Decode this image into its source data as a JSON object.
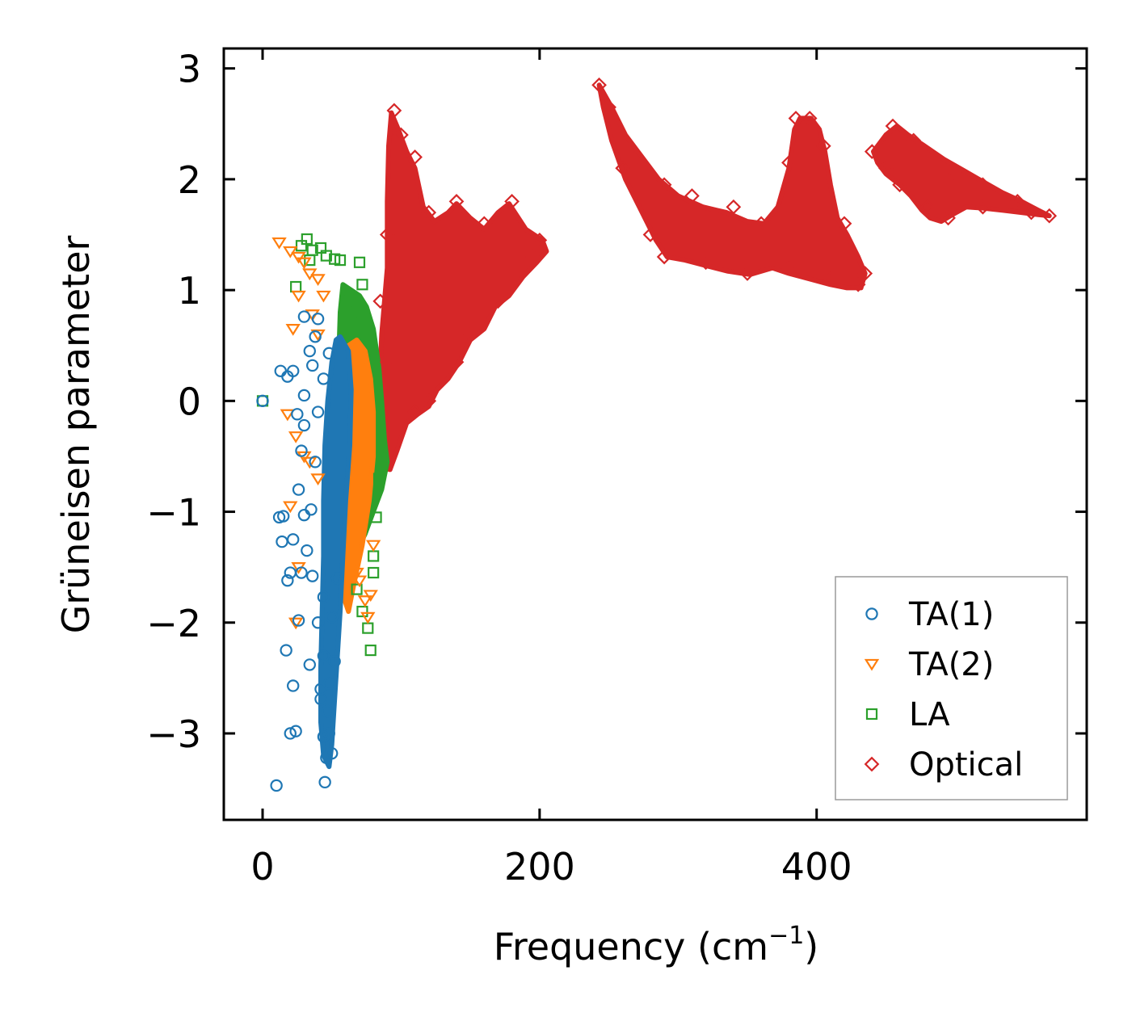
{
  "chart_data": {
    "type": "scatter",
    "title": "",
    "xlabel_main": "Frequency (cm",
    "xlabel_sup": "−1",
    "xlabel_end": ")",
    "ylabel": "Grüneisen parameter",
    "xlim": [
      -28,
      595
    ],
    "ylim": [
      -3.78,
      3.18
    ],
    "xticks": [
      0,
      200,
      400
    ],
    "xtick_labels": [
      "0",
      "200",
      "400"
    ],
    "yticks": [
      -3,
      -2,
      -1,
      0,
      1,
      2,
      3
    ],
    "ytick_labels": [
      "−3",
      "−2",
      "−1",
      "0",
      "1",
      "2",
      "3"
    ],
    "legend_position": "lower-right",
    "series": [
      {
        "name": "TA(1)",
        "marker": "circle",
        "color": "#1f77b4",
        "points": [
          [
            0,
            0
          ],
          [
            10,
            -3.47
          ],
          [
            12,
            -1.05
          ],
          [
            15,
            -1.04
          ],
          [
            17,
            -2.25
          ],
          [
            20,
            -3.0
          ],
          [
            22,
            -2.57
          ],
          [
            24,
            -2.98
          ],
          [
            26,
            -1.98
          ],
          [
            28,
            -1.55
          ],
          [
            30,
            -1.03
          ],
          [
            32,
            -1.35
          ],
          [
            34,
            -2.38
          ],
          [
            36,
            -1.58
          ],
          [
            38,
            -0.55
          ],
          [
            40,
            -0.1
          ],
          [
            42,
            -2.69
          ],
          [
            44,
            -1.77
          ],
          [
            13,
            0.27
          ],
          [
            18,
            0.22
          ],
          [
            22,
            0.27
          ],
          [
            25,
            -0.12
          ],
          [
            28,
            -0.45
          ],
          [
            30,
            0.05
          ],
          [
            34,
            0.45
          ],
          [
            36,
            0.32
          ],
          [
            38,
            0.58
          ],
          [
            40,
            0.74
          ],
          [
            30,
            0.76
          ],
          [
            35,
            -0.98
          ],
          [
            45,
            -3.44
          ],
          [
            46,
            -3.22
          ],
          [
            48,
            -3.0
          ],
          [
            50,
            -3.18
          ],
          [
            44,
            -3.03
          ],
          [
            47,
            -2.8
          ],
          [
            42,
            -2.6
          ],
          [
            44,
            -2.3
          ],
          [
            48,
            -2.55
          ],
          [
            52,
            -2.35
          ],
          [
            40,
            -2.0
          ],
          [
            50,
            -1.95
          ],
          [
            54,
            -1.6
          ],
          [
            14,
            -1.27
          ],
          [
            18,
            -1.62
          ],
          [
            20,
            -1.55
          ],
          [
            22,
            -1.25
          ],
          [
            26,
            -0.8
          ],
          [
            30,
            -0.22
          ],
          [
            44,
            0.2
          ],
          [
            48,
            0.43
          ]
        ]
      },
      {
        "name": "TA(2)",
        "marker": "triangle-down",
        "color": "#ff7f0e",
        "points": [
          [
            12,
            1.43
          ],
          [
            20,
            1.35
          ],
          [
            26,
            1.3
          ],
          [
            30,
            1.25
          ],
          [
            34,
            1.15
          ],
          [
            40,
            1.1
          ],
          [
            44,
            0.95
          ],
          [
            22,
            0.65
          ],
          [
            26,
            0.95
          ],
          [
            36,
            0.78
          ],
          [
            40,
            0.6
          ],
          [
            18,
            -0.12
          ],
          [
            24,
            -0.32
          ],
          [
            30,
            -0.5
          ],
          [
            20,
            -0.95
          ],
          [
            26,
            -1.5
          ],
          [
            24,
            -2.0
          ],
          [
            34,
            -0.55
          ],
          [
            40,
            -0.7
          ],
          [
            70,
            -1.62
          ],
          [
            74,
            -1.8
          ],
          [
            76,
            -1.95
          ],
          [
            68,
            -1.55
          ],
          [
            80,
            -1.3
          ],
          [
            78,
            -1.75
          ]
        ]
      },
      {
        "name": "LA",
        "marker": "square",
        "color": "#2ca02c",
        "points": [
          [
            0,
            0
          ],
          [
            24,
            1.03
          ],
          [
            28,
            1.4
          ],
          [
            32,
            1.46
          ],
          [
            34,
            1.27
          ],
          [
            36,
            1.36
          ],
          [
            42,
            1.38
          ],
          [
            46,
            1.31
          ],
          [
            52,
            1.28
          ],
          [
            56,
            1.27
          ],
          [
            70,
            1.25
          ],
          [
            72,
            1.05
          ],
          [
            60,
            0.9
          ],
          [
            64,
            0.7
          ],
          [
            68,
            -1.7
          ],
          [
            72,
            -1.9
          ],
          [
            76,
            -2.05
          ],
          [
            78,
            -2.25
          ],
          [
            82,
            -1.05
          ],
          [
            84,
            -0.7
          ],
          [
            86,
            -0.5
          ],
          [
            80,
            -1.4
          ],
          [
            80,
            -1.55
          ]
        ]
      },
      {
        "name": "Optical",
        "marker": "diamond",
        "color": "#d62728",
        "points": [
          [
            95,
            2.62
          ],
          [
            100,
            2.4
          ],
          [
            110,
            2.2
          ],
          [
            120,
            1.7
          ],
          [
            140,
            1.8
          ],
          [
            160,
            1.6
          ],
          [
            180,
            1.8
          ],
          [
            200,
            1.45
          ],
          [
            195,
            1.3
          ],
          [
            170,
            0.9
          ],
          [
            150,
            0.6
          ],
          [
            140,
            0.35
          ],
          [
            120,
            0.0
          ],
          [
            110,
            -0.1
          ],
          [
            90,
            0.35
          ],
          [
            85,
            0.9
          ],
          [
            90,
            1.5
          ],
          [
            243,
            2.85
          ],
          [
            250,
            2.65
          ],
          [
            270,
            2.2
          ],
          [
            290,
            1.95
          ],
          [
            310,
            1.85
          ],
          [
            340,
            1.75
          ],
          [
            360,
            1.6
          ],
          [
            380,
            2.15
          ],
          [
            385,
            2.55
          ],
          [
            395,
            2.55
          ],
          [
            405,
            2.3
          ],
          [
            420,
            1.6
          ],
          [
            435,
            1.15
          ],
          [
            430,
            1.05
          ],
          [
            410,
            1.1
          ],
          [
            380,
            1.2
          ],
          [
            350,
            1.15
          ],
          [
            320,
            1.25
          ],
          [
            290,
            1.3
          ],
          [
            280,
            1.5
          ],
          [
            260,
            2.1
          ],
          [
            440,
            2.25
          ],
          [
            455,
            2.48
          ],
          [
            470,
            2.35
          ],
          [
            500,
            2.05
          ],
          [
            520,
            1.95
          ],
          [
            545,
            1.8
          ],
          [
            568,
            1.67
          ],
          [
            555,
            1.7
          ],
          [
            520,
            1.75
          ],
          [
            495,
            1.65
          ],
          [
            480,
            1.75
          ],
          [
            460,
            1.95
          ],
          [
            450,
            2.1
          ]
        ]
      }
    ],
    "clouds": [
      {
        "series": "Optical",
        "color": "#d62728",
        "polygon": [
          [
            93,
            2.6
          ],
          [
            98,
            2.45
          ],
          [
            104,
            2.25
          ],
          [
            110,
            2.1
          ],
          [
            116,
            1.75
          ],
          [
            124,
            1.62
          ],
          [
            134,
            1.7
          ],
          [
            140,
            1.78
          ],
          [
            150,
            1.65
          ],
          [
            160,
            1.55
          ],
          [
            170,
            1.7
          ],
          [
            178,
            1.78
          ],
          [
            190,
            1.55
          ],
          [
            202,
            1.45
          ],
          [
            205,
            1.35
          ],
          [
            198,
            1.25
          ],
          [
            188,
            1.12
          ],
          [
            178,
            0.95
          ],
          [
            168,
            0.85
          ],
          [
            160,
            0.65
          ],
          [
            150,
            0.55
          ],
          [
            142,
            0.35
          ],
          [
            134,
            0.2
          ],
          [
            126,
            0.1
          ],
          [
            120,
            -0.05
          ],
          [
            112,
            -0.12
          ],
          [
            104,
            -0.2
          ],
          [
            97,
            -0.45
          ],
          [
            92,
            -0.62
          ],
          [
            86,
            -0.6
          ],
          [
            84,
            0.0
          ],
          [
            86,
            0.6
          ],
          [
            90,
            1.2
          ],
          [
            90,
            1.8
          ],
          [
            91,
            2.3
          ]
        ]
      },
      {
        "series": "Optical",
        "color": "#d62728",
        "polygon": [
          [
            243,
            2.85
          ],
          [
            252,
            2.65
          ],
          [
            262,
            2.4
          ],
          [
            274,
            2.2
          ],
          [
            286,
            2.0
          ],
          [
            300,
            1.85
          ],
          [
            318,
            1.75
          ],
          [
            335,
            1.7
          ],
          [
            350,
            1.62
          ],
          [
            362,
            1.6
          ],
          [
            372,
            1.75
          ],
          [
            380,
            2.1
          ],
          [
            384,
            2.45
          ],
          [
            388,
            2.55
          ],
          [
            396,
            2.55
          ],
          [
            402,
            2.45
          ],
          [
            406,
            2.25
          ],
          [
            410,
            1.95
          ],
          [
            415,
            1.65
          ],
          [
            422,
            1.5
          ],
          [
            430,
            1.3
          ],
          [
            435,
            1.15
          ],
          [
            432,
            1.02
          ],
          [
            422,
            1.02
          ],
          [
            410,
            1.05
          ],
          [
            395,
            1.1
          ],
          [
            380,
            1.15
          ],
          [
            368,
            1.2
          ],
          [
            352,
            1.14
          ],
          [
            336,
            1.17
          ],
          [
            320,
            1.22
          ],
          [
            305,
            1.27
          ],
          [
            292,
            1.3
          ],
          [
            284,
            1.45
          ],
          [
            272,
            1.75
          ],
          [
            262,
            2.0
          ],
          [
            252,
            2.35
          ],
          [
            246,
            2.65
          ]
        ]
      },
      {
        "series": "Optical",
        "color": "#d62728",
        "polygon": [
          [
            441,
            2.25
          ],
          [
            450,
            2.4
          ],
          [
            458,
            2.48
          ],
          [
            466,
            2.4
          ],
          [
            478,
            2.3
          ],
          [
            492,
            2.18
          ],
          [
            506,
            2.08
          ],
          [
            520,
            1.98
          ],
          [
            534,
            1.88
          ],
          [
            548,
            1.8
          ],
          [
            560,
            1.72
          ],
          [
            568,
            1.67
          ],
          [
            560,
            1.68
          ],
          [
            548,
            1.7
          ],
          [
            534,
            1.72
          ],
          [
            520,
            1.74
          ],
          [
            508,
            1.75
          ],
          [
            498,
            1.68
          ],
          [
            490,
            1.62
          ],
          [
            482,
            1.65
          ],
          [
            476,
            1.72
          ],
          [
            468,
            1.85
          ],
          [
            460,
            1.95
          ],
          [
            450,
            2.05
          ],
          [
            444,
            2.15
          ]
        ]
      },
      {
        "series": "LA",
        "color": "#2ca02c",
        "polygon": [
          [
            58,
            1.05
          ],
          [
            64,
            1.0
          ],
          [
            70,
            0.95
          ],
          [
            75,
            0.85
          ],
          [
            80,
            0.65
          ],
          [
            84,
            0.3
          ],
          [
            86,
            0.0
          ],
          [
            88,
            -0.35
          ],
          [
            90,
            -0.55
          ],
          [
            86,
            -0.8
          ],
          [
            80,
            -1.0
          ],
          [
            74,
            -1.2
          ],
          [
            66,
            -1.4
          ],
          [
            60,
            -1.35
          ],
          [
            58,
            -0.8
          ],
          [
            56,
            -0.2
          ],
          [
            55,
            0.4
          ],
          [
            56,
            0.8
          ]
        ]
      },
      {
        "series": "TA(2)",
        "color": "#ff7f0e",
        "polygon": [
          [
            62,
            0.5
          ],
          [
            68,
            0.55
          ],
          [
            74,
            0.45
          ],
          [
            78,
            0.2
          ],
          [
            80,
            -0.1
          ],
          [
            80,
            -0.5
          ],
          [
            77,
            -0.9
          ],
          [
            72,
            -1.3
          ],
          [
            66,
            -1.65
          ],
          [
            62,
            -1.9
          ],
          [
            58,
            -1.75
          ],
          [
            56,
            -1.2
          ],
          [
            57,
            -0.6
          ],
          [
            58,
            -0.1
          ],
          [
            60,
            0.3
          ]
        ]
      },
      {
        "series": "TA(1)",
        "color": "#1f77b4",
        "polygon": [
          [
            56,
            0.58
          ],
          [
            62,
            0.45
          ],
          [
            64,
            0.1
          ],
          [
            63,
            -0.4
          ],
          [
            60,
            -0.9
          ],
          [
            58,
            -1.4
          ],
          [
            56,
            -1.9
          ],
          [
            54,
            -2.3
          ],
          [
            52,
            -2.7
          ],
          [
            50,
            -3.1
          ],
          [
            48,
            -3.3
          ],
          [
            44,
            -3.2
          ],
          [
            42,
            -2.9
          ],
          [
            42,
            -2.4
          ],
          [
            43,
            -1.9
          ],
          [
            44,
            -1.4
          ],
          [
            44,
            -0.9
          ],
          [
            45,
            -0.4
          ],
          [
            47,
            0.0
          ],
          [
            50,
            0.35
          ],
          [
            53,
            0.55
          ]
        ]
      }
    ]
  }
}
